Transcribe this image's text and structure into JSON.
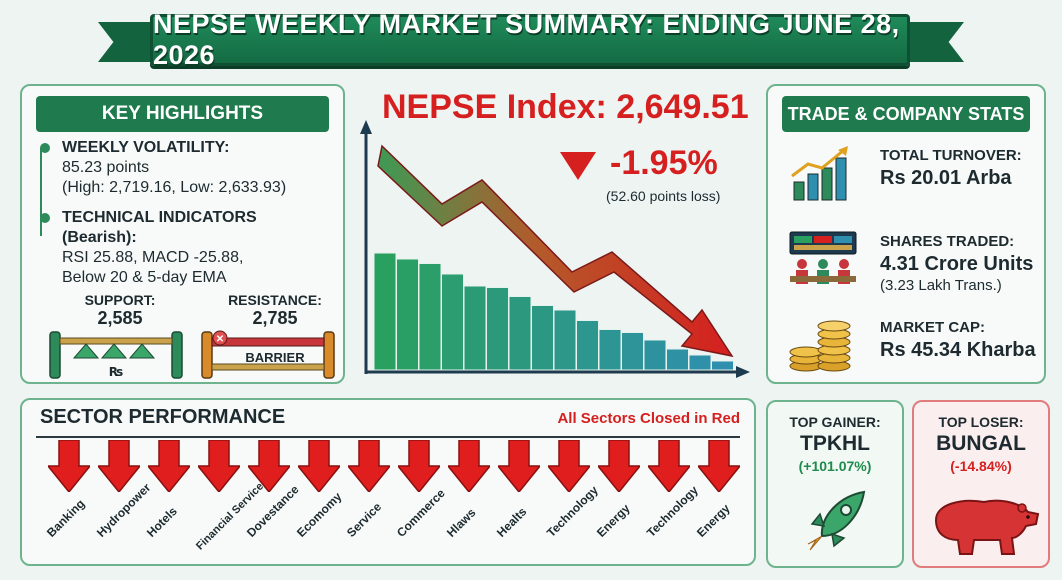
{
  "title": "NEPSE WEEKLY MARKET SUMMARY: ENDING JUNE 28, 2026",
  "key_highlights": {
    "heading": "KEY HIGHLIGHTS",
    "volatility_label": "WEEKLY VOLATILITY:",
    "volatility_value": "85.23 points",
    "volatility_range": "(High: 2,719.16, Low: 2,633.93)",
    "technical_label": "TECHNICAL INDICATORS (Bearish):",
    "technical_line1": "RSI 25.88, MACD -25.88,",
    "technical_line2": "Below 20 & 5-day EMA",
    "support_label": "SUPPORT:",
    "support_value": "2,585",
    "support_glyph": "₨",
    "resistance_label": "RESISTANCE:",
    "resistance_value": "2,785",
    "barrier_label": "BARRIER"
  },
  "index": {
    "title": "NEPSE Index: 2,649.51",
    "change_pct": "-1.95%",
    "change_points": "(52.60 points loss)",
    "bar_levels": [
      0.78,
      0.74,
      0.71,
      0.64,
      0.56,
      0.55,
      0.49,
      0.43,
      0.4,
      0.33,
      0.27,
      0.25,
      0.2,
      0.14,
      0.1,
      0.06
    ]
  },
  "trade_stats": {
    "heading": "TRADE & COMPANY STATS",
    "turnover_label": "TOTAL TURNOVER:",
    "turnover_value": "Rs 20.01 Arba",
    "shares_label": "SHARES TRADED:",
    "shares_value": "4.31 Crore Units",
    "shares_sub": "(3.23 Lakh Trans.)",
    "mcap_label": "MARKET CAP:",
    "mcap_value": "Rs 45.34 Kharba"
  },
  "sector": {
    "heading": "SECTOR PERFORMANCE",
    "note": "All Sectors Closed in Red",
    "sectors": [
      "Banking",
      "Hydropower",
      "Hotels",
      "Financial Services",
      "Dovestance",
      "Ecomomy",
      "Service",
      "Commerce",
      "Hlaws",
      "Healts",
      "Technology",
      "Energy",
      "Technology",
      "Energy"
    ]
  },
  "top_gainer": {
    "label": "TOP GAINER:",
    "name": "TPKHL",
    "pct": "(+101.07%)"
  },
  "top_loser": {
    "label": "TOP LOSER:",
    "name": "BUNGAL",
    "pct": "(-14.84%)"
  },
  "colors": {
    "green": "#1f7a4d",
    "red": "#d61f1f",
    "teal": "#2f8fae"
  }
}
